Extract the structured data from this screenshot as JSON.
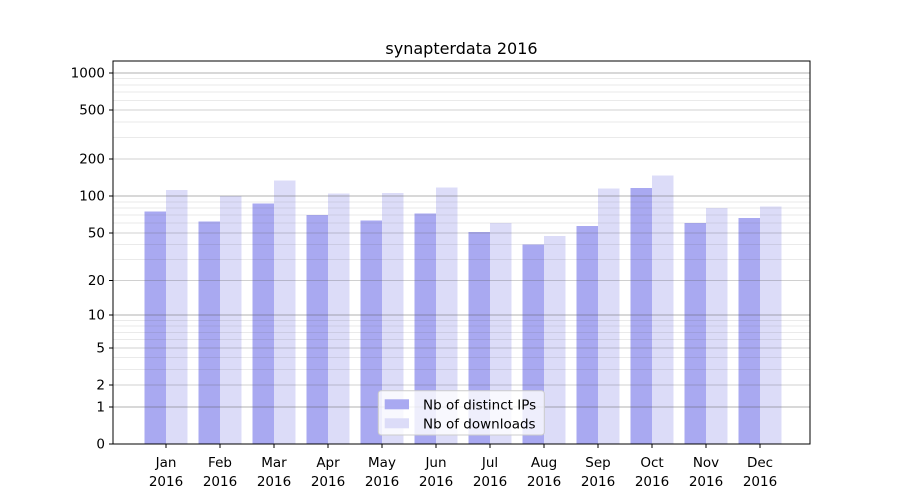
{
  "chart_data": {
    "type": "bar",
    "title": "synapterdata 2016",
    "categories": [
      {
        "month": "Jan",
        "year": "2016"
      },
      {
        "month": "Feb",
        "year": "2016"
      },
      {
        "month": "Mar",
        "year": "2016"
      },
      {
        "month": "Apr",
        "year": "2016"
      },
      {
        "month": "May",
        "year": "2016"
      },
      {
        "month": "Jun",
        "year": "2016"
      },
      {
        "month": "Jul",
        "year": "2016"
      },
      {
        "month": "Aug",
        "year": "2016"
      },
      {
        "month": "Sep",
        "year": "2016"
      },
      {
        "month": "Oct",
        "year": "2016"
      },
      {
        "month": "Nov",
        "year": "2016"
      },
      {
        "month": "Dec",
        "year": "2016"
      }
    ],
    "series": [
      {
        "name": "Nb of distinct IPs",
        "color": "#a9a9f1",
        "values": [
          75,
          62,
          87,
          70,
          63,
          72,
          51,
          40,
          57,
          117,
          60,
          66
        ]
      },
      {
        "name": "Nb of downloads",
        "color": "#dcdcf8",
        "values": [
          112,
          100,
          134,
          105,
          106,
          118,
          60,
          47,
          116,
          148,
          80,
          82
        ]
      }
    ],
    "xlabel": "",
    "ylabel": "",
    "y_axis": {
      "scale": "symlog",
      "ticks": [
        0,
        1,
        2,
        5,
        10,
        20,
        50,
        100,
        200,
        500,
        1000
      ],
      "ylim": [
        0,
        1234
      ],
      "grid": "on"
    },
    "legend": {
      "position": "lower center"
    }
  },
  "colors": {
    "background": "#ffffff",
    "bar_distinct_ips": "#a9a9f1",
    "bar_downloads": "#dcdcf8",
    "grid_major": "#b5b5b5",
    "grid_minor": "#e8e8e8",
    "axis": "#000000",
    "legend_border": "#cccccc",
    "legend_background": "rgba(255,255,255,0.8)"
  }
}
